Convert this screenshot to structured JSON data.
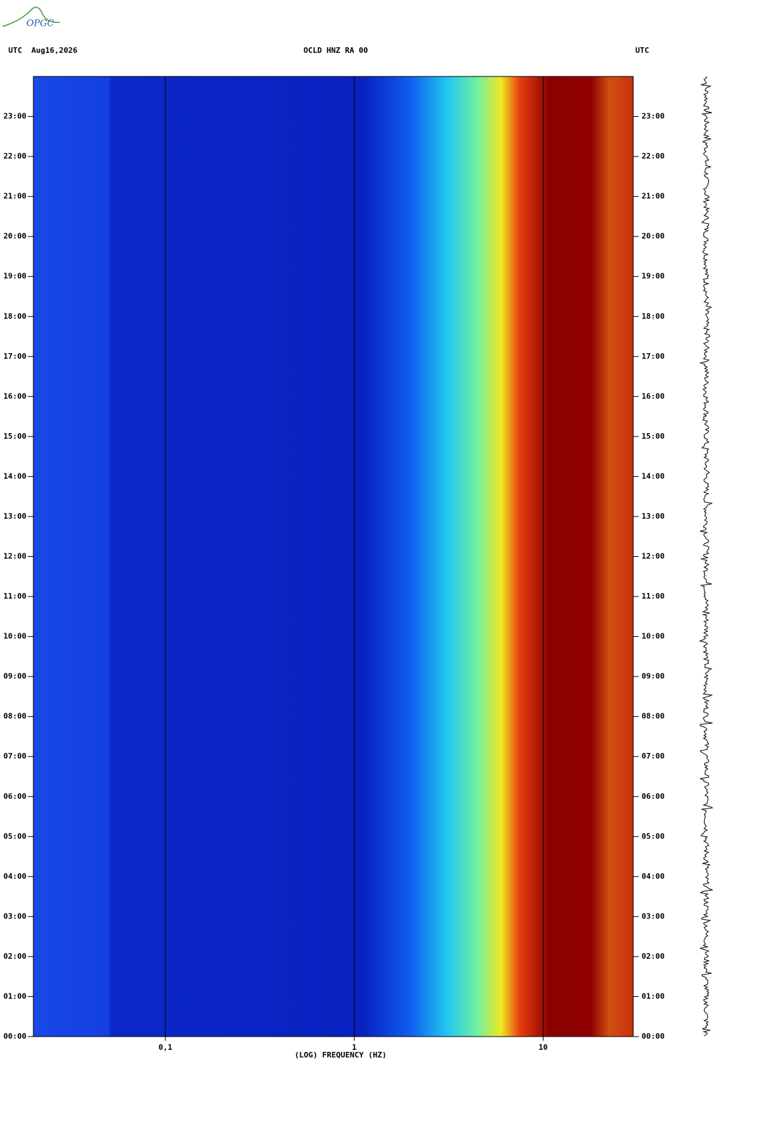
{
  "logo": "OPGC",
  "chart_data": {
    "type": "spectrogram",
    "header_left": "UTC  Aug16,2026",
    "title": "OCLD HNZ RA 00",
    "header_right": "UTC",
    "x_label": "(LOG) FREQUENCY (HZ)",
    "x_log": true,
    "xlim": [
      0.02,
      30
    ],
    "xticks": [
      {
        "value": 0.1,
        "label": "0,1"
      },
      1,
      10
    ],
    "ylim": [
      0,
      24
    ],
    "yticks": [
      {
        "value": 0,
        "label": "00:00"
      },
      {
        "value": 1,
        "label": "01:00"
      },
      {
        "value": 2,
        "label": "02:00"
      },
      {
        "value": 3,
        "label": "03:00"
      },
      {
        "value": 4,
        "label": "04:00"
      },
      {
        "value": 5,
        "label": "05:00"
      },
      {
        "value": 6,
        "label": "06:00"
      },
      {
        "value": 7,
        "label": "07:00"
      },
      {
        "value": 8,
        "label": "08:00"
      },
      {
        "value": 9,
        "label": "09:00"
      },
      {
        "value": 10,
        "label": "10:00"
      },
      {
        "value": 11,
        "label": "11:00"
      },
      {
        "value": 12,
        "label": "12:00"
      },
      {
        "value": 13,
        "label": "13:00"
      },
      {
        "value": 14,
        "label": "14:00"
      },
      {
        "value": 15,
        "label": "15:00"
      },
      {
        "value": 16,
        "label": "16:00"
      },
      {
        "value": 17,
        "label": "17:00"
      },
      {
        "value": 18,
        "label": "18:00"
      },
      {
        "value": 19,
        "label": "19:00"
      },
      {
        "value": 20,
        "label": "20:00"
      },
      {
        "value": 21,
        "label": "21:00"
      },
      {
        "value": 22,
        "label": "22:00"
      },
      {
        "value": 23,
        "label": "23:00"
      }
    ]
  }
}
